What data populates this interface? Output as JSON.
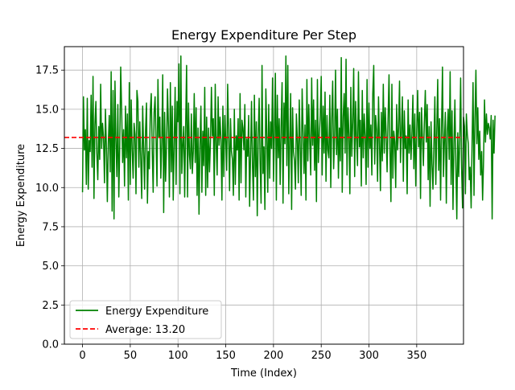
{
  "chart_data": {
    "type": "line",
    "title": "Energy Expenditure Per Step",
    "xlabel": "Time (Index)",
    "ylabel": "Energy Expenditure",
    "xlim": [
      -19,
      399
    ],
    "ylim": [
      0,
      19
    ],
    "xticks": [
      0,
      50,
      100,
      150,
      200,
      250,
      300,
      350
    ],
    "xtick_labels": [
      "0",
      "50",
      "100",
      "150",
      "200",
      "250",
      "300",
      "350"
    ],
    "yticks": [
      0,
      2.5,
      5,
      7.5,
      10,
      12.5,
      15,
      17.5
    ],
    "ytick_labels": [
      "0.0",
      "2.5",
      "5.0",
      "7.5",
      "10.0",
      "12.5",
      "15.0",
      "17.5"
    ],
    "grid": true,
    "legend_position": "lower-left",
    "colors": {
      "series": "#008000",
      "average": "#ff0000",
      "grid": "#b0b0b0",
      "axes": "#000000"
    },
    "series": [
      {
        "name": "Energy Expenditure",
        "style": "solid",
        "x_start": 0,
        "x_step": 1,
        "values": [
          9.7,
          15.8,
          12.4,
          13.7,
          10.2,
          15.7,
          9.9,
          13.0,
          12.3,
          15.9,
          11.3,
          17.1,
          9.3,
          14.0,
          15.5,
          12.2,
          10.5,
          13.9,
          11.8,
          16.6,
          12.5,
          14.1,
          13.2,
          10.3,
          15.0,
          12.6,
          9.1,
          12.8,
          14.6,
          11.0,
          17.4,
          8.5,
          16.2,
          8.0,
          16.8,
          13.0,
          10.7,
          15.3,
          9.4,
          12.7,
          17.7,
          14.9,
          11.6,
          13.7,
          10.1,
          15.2,
          11.9,
          14.7,
          9.2,
          16.7,
          10.2,
          15.6,
          12.4,
          10.6,
          14.1,
          13.4,
          9.6,
          16.2,
          15.5,
          11.3,
          14.2,
          11.8,
          9.3,
          15.2,
          12.5,
          9.9,
          13.6,
          15.4,
          9.0,
          12.3,
          11.2,
          14.9,
          16.0,
          12.4,
          9.7,
          14.8,
          15.8,
          13.1,
          10.1,
          16.9,
          13.2,
          14.5,
          10.6,
          12.9,
          17.2,
          8.4,
          14.8,
          10.4,
          12.6,
          16.3,
          13.9,
          9.4,
          16.7,
          11.0,
          15.2,
          9.2,
          12.8,
          16.4,
          10.2,
          15.5,
          14.2,
          17.9,
          9.6,
          18.4,
          10.9,
          12.7,
          13.9,
          9.4,
          13.9,
          17.8,
          9.4,
          15.4,
          12.1,
          11.2,
          14.7,
          10.9,
          12.3,
          16.0,
          11.6,
          15.1,
          9.5,
          13.8,
          8.3,
          12.7,
          15.2,
          9.7,
          13.6,
          11.4,
          16.4,
          9.5,
          14.5,
          10.0,
          13.8,
          11.0,
          12.9,
          16.4,
          13.3,
          14.4,
          9.5,
          16.6,
          12.7,
          10.8,
          15.8,
          12.7,
          14.5,
          13.0,
          9.2,
          15.2,
          10.7,
          14.6,
          13.0,
          11.1,
          16.6,
          13.5,
          9.8,
          14.4,
          12.3,
          11.8,
          9.5,
          15.0,
          10.2,
          13.3,
          12.4,
          14.4,
          9.2,
          16.0,
          10.3,
          14.3,
          13.8,
          12.4,
          15.3,
          9.4,
          13.1,
          12.0,
          14.6,
          8.8,
          12.1,
          15.5,
          11.4,
          9.2,
          15.9,
          10.7,
          14.2,
          8.2,
          13.2,
          15.7,
          11.6,
          9.0,
          17.8,
          10.9,
          12.6,
          8.6,
          16.3,
          13.4,
          9.7,
          15.3,
          10.6,
          14.2,
          12.5,
          17.0,
          10.4,
          13.5,
          17.3,
          9.2,
          15.9,
          11.9,
          14.4,
          10.2,
          13.9,
          16.7,
          9.0,
          15.4,
          12.8,
          18.4,
          11.4,
          17.8,
          9.6,
          12.9,
          16.0,
          8.6,
          15.1,
          12.3,
          11.7,
          9.9,
          14.7,
          13.0,
          10.3,
          15.6,
          12.6,
          9.5,
          16.3,
          13.7,
          10.9,
          14.0,
          9.2,
          16.9,
          11.7,
          15.3,
          12.9,
          10.8,
          17.0,
          12.7,
          15.6,
          11.1,
          14.3,
          9.1,
          16.9,
          11.6,
          13.3,
          14.6,
          17.1,
          10.8,
          15.2,
          12.2,
          16.1,
          10.4,
          14.6,
          12.4,
          11.9,
          15.9,
          10.0,
          14.4,
          16.8,
          11.2,
          13.2,
          17.5,
          12.1,
          15.0,
          10.6,
          13.8,
          11.7,
          18.3,
          9.7,
          14.5,
          16.0,
          12.2,
          18.2,
          10.8,
          15.1,
          13.4,
          9.6,
          16.4,
          12.0,
          14.2,
          17.6,
          10.7,
          15.5,
          13.1,
          11.4,
          17.4,
          12.6,
          14.3,
          10.1,
          16.2,
          11.9,
          14.7,
          13.3,
          10.2,
          16.9,
          11.3,
          15.4,
          12.5,
          14.0,
          10.8,
          16.0,
          17.8,
          11.5,
          14.6,
          13.7,
          10.4,
          15.8,
          12.9,
          9.8,
          14.8,
          11.7,
          16.6,
          12.2,
          15.1,
          13.4,
          11.0,
          14.4,
          17.2,
          12.4,
          9.1,
          16.6,
          10.6,
          13.6,
          12.9,
          10.0,
          15.3,
          12.4,
          13.8,
          16.8,
          11.6,
          13.6,
          15.8,
          10.4,
          14.9,
          12.5,
          13.3,
          9.6,
          15.6,
          12.2,
          14.0,
          11.8,
          13.4,
          15.9,
          11.2,
          14.7,
          10.1,
          13.7,
          16.2,
          12.6,
          14.8,
          9.3,
          15.1,
          13.2,
          11.4,
          14.2,
          16.2,
          12.9,
          15.3,
          10.5,
          13.9,
          8.8,
          14.2,
          11.5,
          9.9,
          12.7,
          15.8,
          10.2,
          13.6,
          16.9,
          11.1,
          14.4,
          9.2,
          13.8,
          17.7,
          10.7,
          12.9,
          14.8,
          9.0,
          13.6,
          15.0,
          11.8,
          17.4,
          10.2,
          14.9,
          8.6,
          12.8,
          15.6,
          11.4,
          8.0,
          13.5,
          10.7,
          12.8,
          17.0,
          11.2,
          8.7,
          14.5,
          13.9,
          9.6,
          14.7,
          13.4,
          12.8,
          10.5,
          11.3,
          8.7,
          12.9,
          16.7,
          9.5,
          14.4,
          17.5,
          12.8,
          15.1,
          11.8,
          13.6,
          10.8,
          12.3,
          9.2,
          11.7,
          15.6,
          12.9,
          14.7,
          13.4,
          14.1,
          13.8,
          13.1,
          14.6,
          8.0,
          14.3,
          12.2,
          14.6
        ]
      },
      {
        "name": "Average: 13.20",
        "style": "dashed",
        "value": 13.2
      }
    ]
  }
}
